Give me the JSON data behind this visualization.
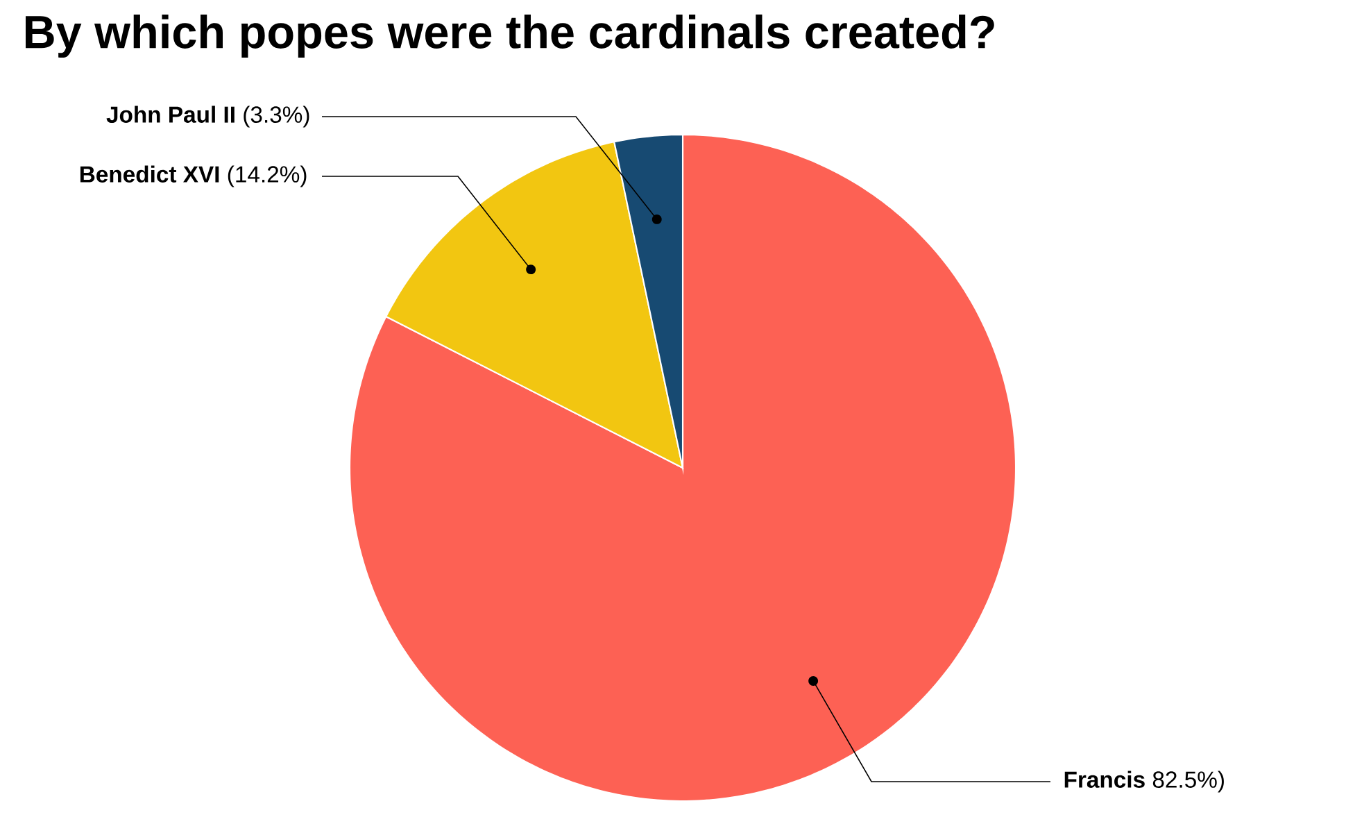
{
  "chart_data": {
    "type": "pie",
    "title": "By which popes were the cardinals created?",
    "categories": [
      "Francis",
      "Benedict XVI",
      "John Paul II"
    ],
    "values": [
      82.5,
      14.2,
      3.3
    ],
    "colors": [
      "#fd6154",
      "#f2c611",
      "#174a72"
    ],
    "value_labels": [
      "82.5%)",
      "(14.2%)",
      "(3.3%)"
    ]
  }
}
